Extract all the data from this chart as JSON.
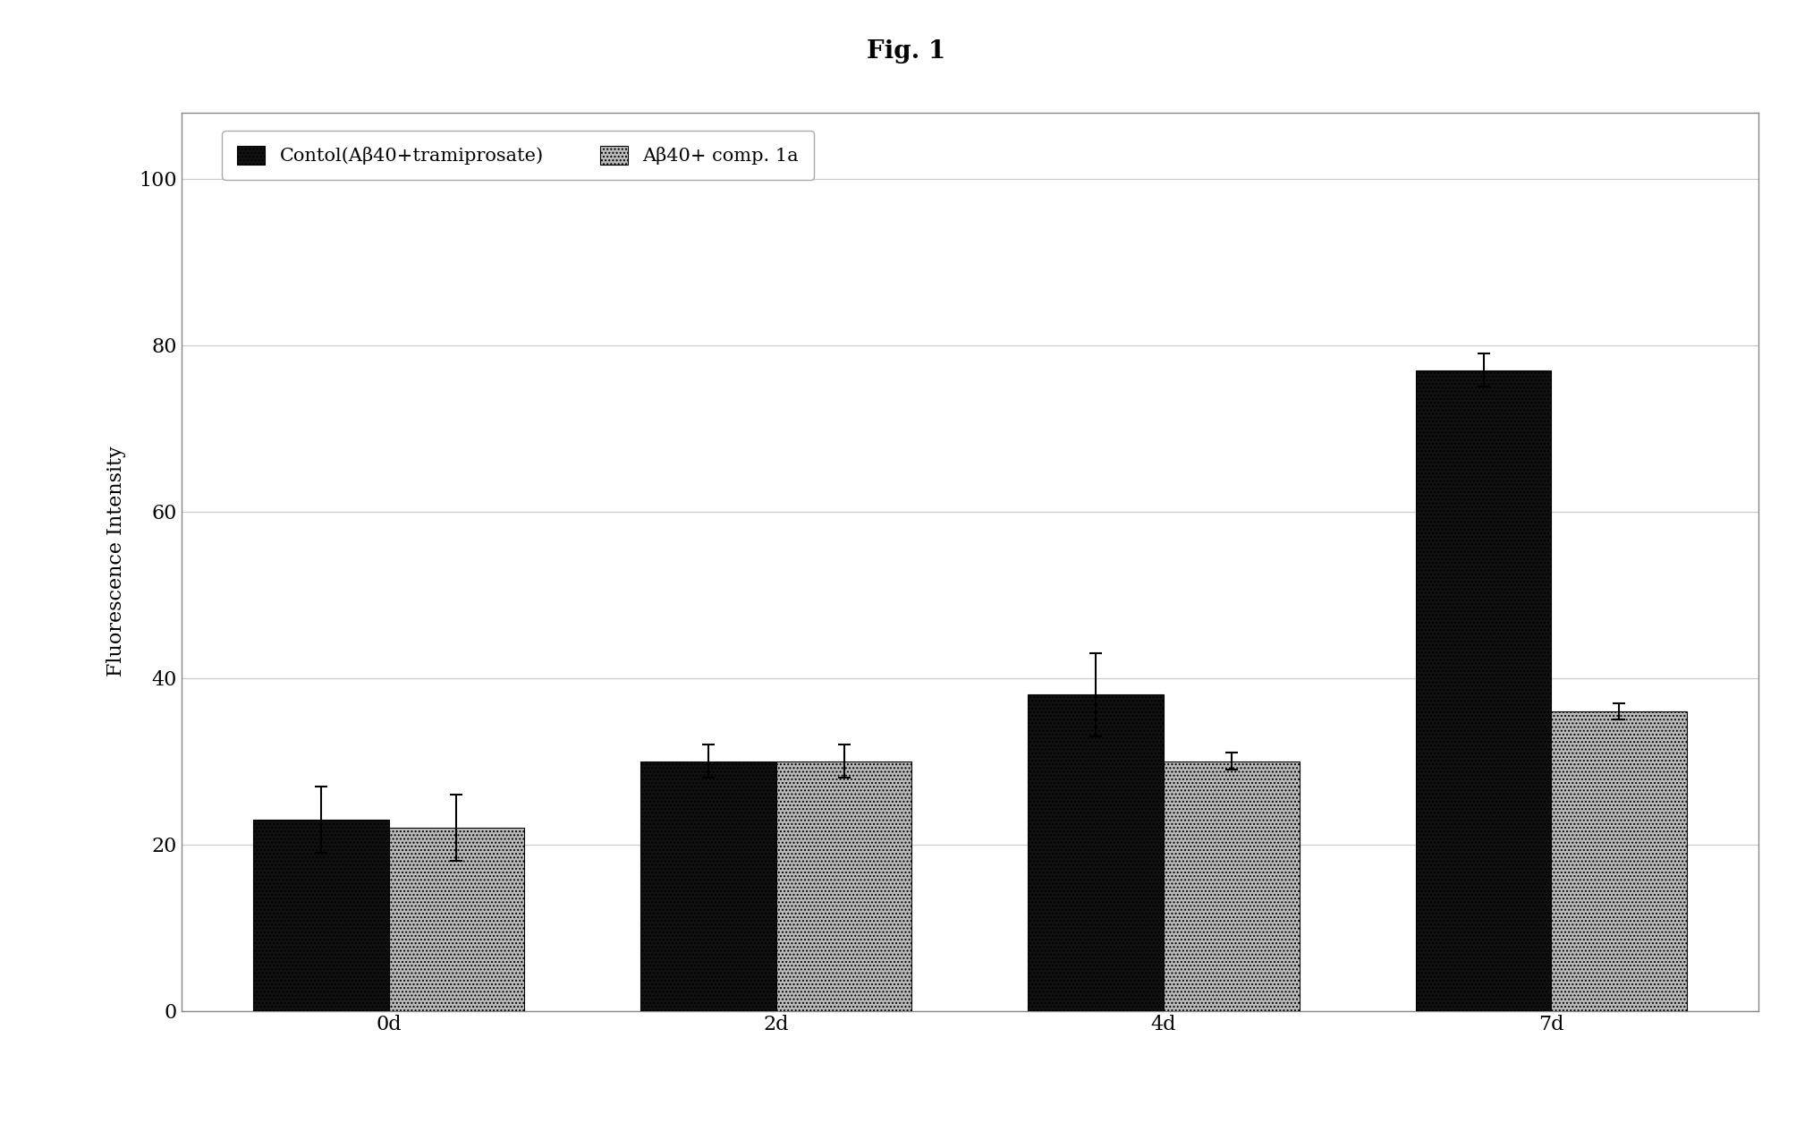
{
  "title": "Fig. 1",
  "ylabel": "Fluorescence Intensity",
  "categories": [
    "0d",
    "2d",
    "4d",
    "7d"
  ],
  "series": [
    {
      "label": "Contol(Aβ40+tramiprosate)",
      "values": [
        23,
        30,
        38,
        77
      ],
      "errors": [
        4,
        2,
        5,
        2
      ],
      "color": "#111111",
      "hatch": "....",
      "legend_color": "#111111"
    },
    {
      "label": "Aβ40+ comp. 1a",
      "values": [
        22,
        30,
        30,
        36
      ],
      "errors": [
        4,
        2,
        1,
        1
      ],
      "color": "#bbbbbb",
      "hatch": "....",
      "legend_color": "#bbbbbb"
    }
  ],
  "ylim": [
    0,
    108
  ],
  "yticks": [
    0,
    20,
    40,
    60,
    80,
    100
  ],
  "bar_width": 0.35,
  "figure_bg": "#ffffff",
  "axes_bg": "#ffffff",
  "legend_loc": "upper left",
  "title_fontsize": 20,
  "axis_fontsize": 16,
  "tick_fontsize": 16,
  "legend_fontsize": 15,
  "grid_color": "#cccccc",
  "border_color": "#888888"
}
